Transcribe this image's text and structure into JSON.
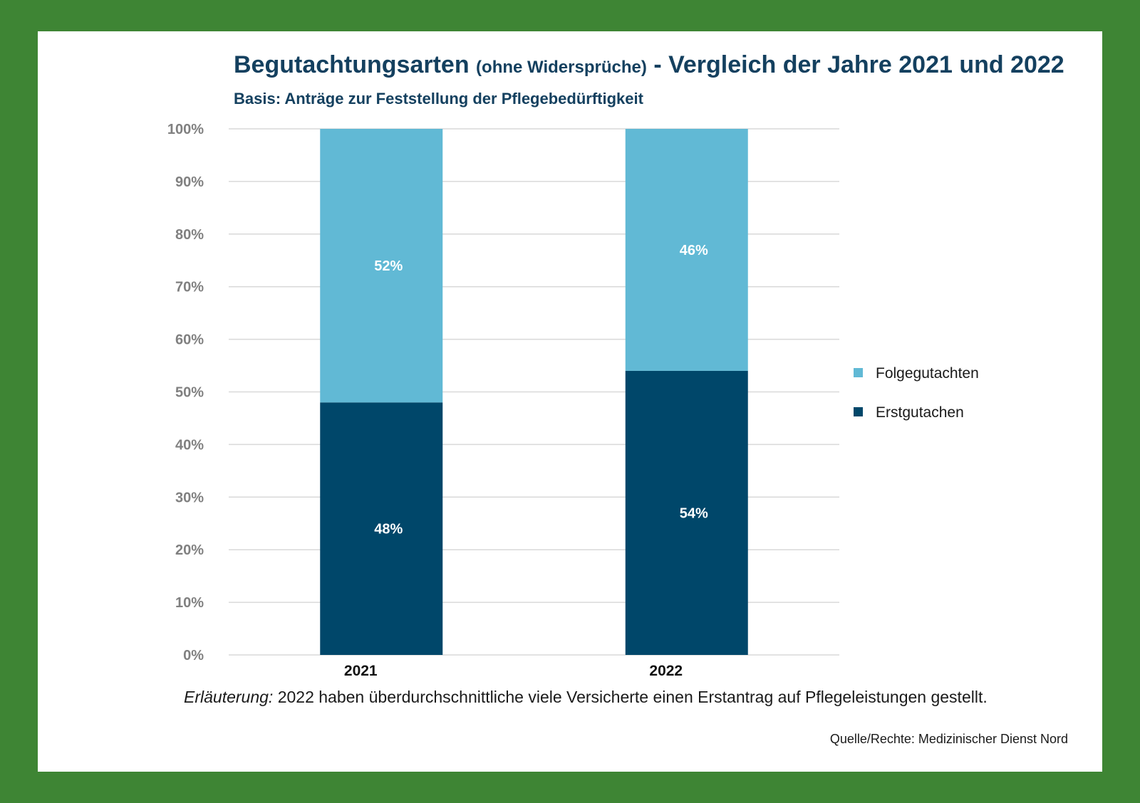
{
  "header": {
    "title_main": "Begutachtungsarten",
    "title_paren": "(ohne Widersprüche)",
    "title_rest": "- Vergleich der Jahre 2021 und 2022",
    "subtitle": "Basis: Anträge zur Feststellung der Pflegebedürftigkeit"
  },
  "chart_data": {
    "type": "bar",
    "stacked": true,
    "title": "Begutachtungsarten (ohne Widersprüche) - Vergleich der Jahre 2021 und 2022",
    "subtitle": "Basis: Anträge zur Feststellung der Pflegebedürftigkeit",
    "categories": [
      "2021",
      "2022"
    ],
    "series": [
      {
        "name": "Erstgutachen",
        "values": [
          48,
          54
        ],
        "labels": [
          "48%",
          "54%"
        ],
        "color": "#00476a"
      },
      {
        "name": "Folgegutachten",
        "values": [
          52,
          46
        ],
        "labels": [
          "52%",
          "46%"
        ],
        "color": "#61b9d5"
      }
    ],
    "ylim": [
      0,
      100
    ],
    "yticks": [
      "0%",
      "10%",
      "20%",
      "30%",
      "40%",
      "50%",
      "60%",
      "70%",
      "80%",
      "90%",
      "100%"
    ],
    "grid": true,
    "legend_position": "right",
    "legend_order": [
      "Folgegutachten",
      "Erstgutachen"
    ],
    "gridline_color": "#d9d9d9"
  },
  "footer": {
    "note_prefix": "Erläuterung:",
    "note_text": " 2022 haben überdurchschnittliche viele Versicherte einen Erstantrag auf Pflegeleistungen gestellt.",
    "source": "Quelle/Rechte: Medizinischer Dienst Nord"
  },
  "colors": {
    "frame": "#3e8534",
    "title": "#14405f"
  }
}
